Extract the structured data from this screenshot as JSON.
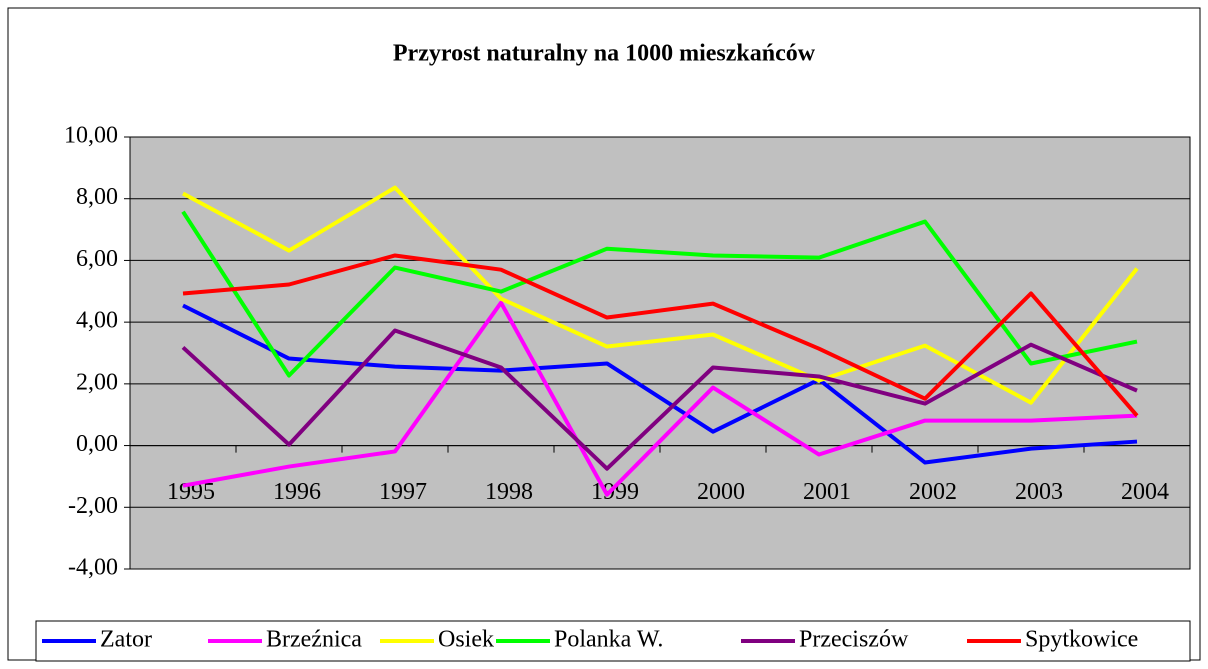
{
  "chart_data": {
    "type": "line",
    "title": "Przyrost naturalny na 1000 mieszkańców",
    "categories": [
      "1995",
      "1996",
      "1997",
      "1998",
      "1999",
      "2000",
      "2001",
      "2002",
      "2003",
      "2004"
    ],
    "ylim": [
      -4,
      10
    ],
    "yticks": [
      {
        "value": -4,
        "label": "-4,00"
      },
      {
        "value": -2,
        "label": "-2,00"
      },
      {
        "value": 0,
        "label": "0,00"
      },
      {
        "value": 2,
        "label": "2,00"
      },
      {
        "value": 4,
        "label": "4,00"
      },
      {
        "value": 6,
        "label": "6,00"
      },
      {
        "value": 8,
        "label": "8,00"
      },
      {
        "value": 10,
        "label": "10,00"
      }
    ],
    "grid": true,
    "legend": "bottom",
    "series": [
      {
        "name": "Zator",
        "color": "#0000ff",
        "values": [
          4.54,
          2.82,
          2.56,
          2.43,
          2.66,
          0.45,
          2.14,
          -0.55,
          -0.1,
          0.13
        ]
      },
      {
        "name": "Brzeźnica",
        "color": "#ff00ff",
        "values": [
          -1.3,
          -0.68,
          -0.19,
          4.63,
          -1.59,
          1.88,
          -0.29,
          0.81,
          0.81,
          0.97
        ]
      },
      {
        "name": "Osiek",
        "color": "#ffff00",
        "values": [
          8.17,
          6.32,
          8.36,
          4.76,
          3.21,
          3.6,
          2.11,
          3.24,
          1.39,
          5.74
        ]
      },
      {
        "name": "Polanka W.",
        "color": "#00ff00",
        "values": [
          7.58,
          2.27,
          5.77,
          4.99,
          6.38,
          6.16,
          6.09,
          7.26,
          2.66,
          3.37
        ]
      },
      {
        "name": "Przeciszów",
        "color": "#800080",
        "values": [
          3.18,
          0.03,
          3.73,
          2.53,
          -0.75,
          2.53,
          2.24,
          1.36,
          3.27,
          1.78
        ]
      },
      {
        "name": "Spytkowice",
        "color": "#ff0000",
        "values": [
          4.93,
          5.22,
          6.16,
          5.7,
          4.15,
          4.6,
          3.14,
          1.52,
          4.93,
          0.97
        ]
      }
    ]
  }
}
